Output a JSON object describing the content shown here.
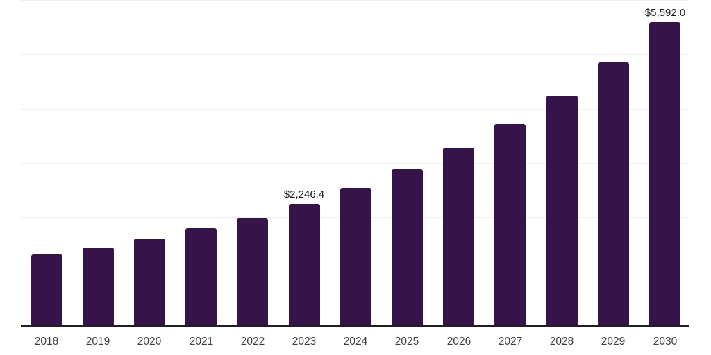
{
  "chart_data": {
    "type": "bar",
    "title": "",
    "xlabel": "",
    "ylabel": "",
    "categories": [
      "2018",
      "2019",
      "2020",
      "2021",
      "2022",
      "2023",
      "2024",
      "2025",
      "2026",
      "2027",
      "2028",
      "2029",
      "2030"
    ],
    "values": [
      1310,
      1440,
      1610,
      1800,
      1985,
      2246.4,
      2540,
      2880,
      3280,
      3710,
      4240,
      4850,
      5592
    ],
    "point_labels": [
      "",
      "",
      "",
      "",
      "",
      "$2,246.4",
      "",
      "",
      "",
      "",
      "",
      "",
      "$5,592.0"
    ],
    "ylim": [
      0,
      6000
    ],
    "gridline_step": 1000,
    "grid": "horizontal-only",
    "legend": "none",
    "colors": {
      "bar_fill": "#361349",
      "gridline": "#f0f0f0",
      "axis_line": "#1f1f1f",
      "value_label_text": "#1a1a1a",
      "tick_label_text": "#3d3d3d",
      "background": "#ffffff"
    }
  }
}
